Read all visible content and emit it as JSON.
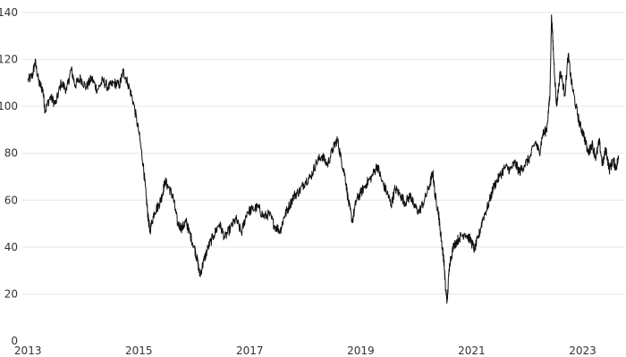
{
  "chart_data": {
    "type": "line",
    "title": "",
    "xlabel": "",
    "ylabel": "",
    "xlim": [
      2012.9,
      2023.75
    ],
    "ylim": [
      0,
      140
    ],
    "yticks": [
      0,
      20,
      40,
      60,
      80,
      100,
      120,
      140
    ],
    "xticks": [
      {
        "value": 2013,
        "label": "2013"
      },
      {
        "value": 2015,
        "label": "2015"
      },
      {
        "value": 2017,
        "label": "2017"
      },
      {
        "value": 2019,
        "label": "2019"
      },
      {
        "value": 2021,
        "label": "2021"
      },
      {
        "value": 2023,
        "label": "2023"
      }
    ],
    "grid": "horizontal",
    "legend": "none",
    "colors": {
      "line": "#111111",
      "grid": "#e6e6e6",
      "text": "#333333"
    },
    "series": [
      {
        "values": [
          [
            2013.0,
            111
          ],
          [
            2013.08,
            113
          ],
          [
            2013.13,
            119
          ],
          [
            2013.2,
            110
          ],
          [
            2013.27,
            107
          ],
          [
            2013.31,
            98
          ],
          [
            2013.4,
            104
          ],
          [
            2013.5,
            101
          ],
          [
            2013.6,
            110
          ],
          [
            2013.7,
            107
          ],
          [
            2013.78,
            116
          ],
          [
            2013.85,
            109
          ],
          [
            2013.95,
            112
          ],
          [
            2014.05,
            108
          ],
          [
            2014.15,
            112
          ],
          [
            2014.25,
            107
          ],
          [
            2014.35,
            111
          ],
          [
            2014.45,
            108
          ],
          [
            2014.55,
            110
          ],
          [
            2014.65,
            109
          ],
          [
            2014.72,
            115
          ],
          [
            2014.8,
            110
          ],
          [
            2014.9,
            102
          ],
          [
            2015.0,
            89
          ],
          [
            2015.08,
            75
          ],
          [
            2015.13,
            62
          ],
          [
            2015.17,
            52
          ],
          [
            2015.2,
            47
          ],
          [
            2015.28,
            55
          ],
          [
            2015.36,
            58
          ],
          [
            2015.42,
            62
          ],
          [
            2015.47,
            68
          ],
          [
            2015.55,
            65
          ],
          [
            2015.62,
            61
          ],
          [
            2015.7,
            50
          ],
          [
            2015.78,
            48
          ],
          [
            2015.85,
            51
          ],
          [
            2015.9,
            47
          ],
          [
            2016.0,
            40
          ],
          [
            2016.05,
            35
          ],
          [
            2016.1,
            28
          ],
          [
            2016.17,
            34
          ],
          [
            2016.25,
            40
          ],
          [
            2016.35,
            45
          ],
          [
            2016.45,
            50
          ],
          [
            2016.55,
            44
          ],
          [
            2016.65,
            48
          ],
          [
            2016.75,
            52
          ],
          [
            2016.85,
            46
          ],
          [
            2016.95,
            55
          ],
          [
            2017.05,
            56
          ],
          [
            2017.15,
            57
          ],
          [
            2017.25,
            53
          ],
          [
            2017.35,
            54
          ],
          [
            2017.45,
            49
          ],
          [
            2017.55,
            47
          ],
          [
            2017.62,
            53
          ],
          [
            2017.7,
            57
          ],
          [
            2017.8,
            62
          ],
          [
            2017.9,
            64
          ],
          [
            2018.0,
            68
          ],
          [
            2018.1,
            70
          ],
          [
            2018.2,
            76
          ],
          [
            2018.3,
            79
          ],
          [
            2018.4,
            75
          ],
          [
            2018.5,
            82
          ],
          [
            2018.58,
            86
          ],
          [
            2018.65,
            77
          ],
          [
            2018.72,
            70
          ],
          [
            2018.78,
            59
          ],
          [
            2018.85,
            51
          ],
          [
            2018.92,
            60
          ],
          [
            2019.0,
            63
          ],
          [
            2019.1,
            67
          ],
          [
            2019.2,
            70
          ],
          [
            2019.3,
            75
          ],
          [
            2019.38,
            68
          ],
          [
            2019.48,
            63
          ],
          [
            2019.55,
            58
          ],
          [
            2019.62,
            65
          ],
          [
            2019.72,
            62
          ],
          [
            2019.8,
            59
          ],
          [
            2019.9,
            62
          ],
          [
            2019.95,
            58
          ],
          [
            2020.05,
            55
          ],
          [
            2020.15,
            60
          ],
          [
            2020.25,
            67
          ],
          [
            2020.3,
            72
          ],
          [
            2020.34,
            62
          ],
          [
            2020.4,
            55
          ],
          [
            2020.43,
            48
          ],
          [
            2020.47,
            40
          ],
          [
            2020.5,
            34
          ],
          [
            2020.53,
            22
          ],
          [
            2020.56,
            17
          ],
          [
            2020.6,
            33
          ],
          [
            2020.68,
            41
          ],
          [
            2020.78,
            44
          ],
          [
            2020.88,
            46
          ],
          [
            2020.98,
            43
          ],
          [
            2021.05,
            39
          ],
          [
            2021.12,
            44
          ],
          [
            2021.2,
            52
          ],
          [
            2021.3,
            58
          ],
          [
            2021.4,
            66
          ],
          [
            2021.5,
            70
          ],
          [
            2021.6,
            74
          ],
          [
            2021.7,
            73
          ],
          [
            2021.78,
            76
          ],
          [
            2021.86,
            72
          ],
          [
            2021.95,
            75
          ],
          [
            2022.05,
            78
          ],
          [
            2022.15,
            85
          ],
          [
            2022.22,
            80
          ],
          [
            2022.28,
            88
          ],
          [
            2022.35,
            90
          ],
          [
            2022.41,
            104
          ],
          [
            2022.44,
            139
          ],
          [
            2022.48,
            120
          ],
          [
            2022.53,
            100
          ],
          [
            2022.6,
            115
          ],
          [
            2022.68,
            105
          ],
          [
            2022.74,
            122
          ],
          [
            2022.8,
            110
          ],
          [
            2022.88,
            100
          ],
          [
            2022.95,
            92
          ],
          [
            2023.02,
            88
          ],
          [
            2023.1,
            80
          ],
          [
            2023.17,
            84
          ],
          [
            2023.24,
            78
          ],
          [
            2023.3,
            85
          ],
          [
            2023.36,
            75
          ],
          [
            2023.42,
            82
          ],
          [
            2023.48,
            73
          ],
          [
            2023.55,
            77
          ],
          [
            2023.6,
            74
          ],
          [
            2023.65,
            78
          ]
        ]
      }
    ]
  }
}
